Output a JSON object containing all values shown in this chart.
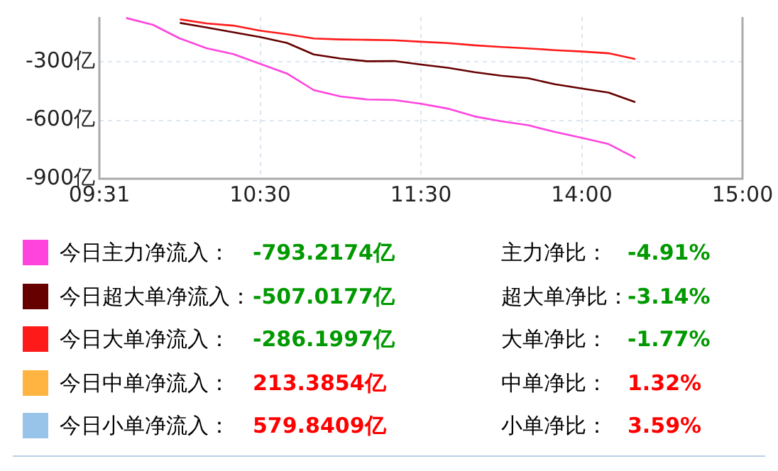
{
  "chart_data": {
    "type": "line",
    "categories": [
      "09:31",
      null,
      null,
      null,
      null,
      null,
      "10:30",
      null,
      null,
      null,
      null,
      null,
      "11:30",
      null,
      null,
      null,
      null,
      null,
      "14:00",
      null,
      null,
      null,
      null,
      null,
      "15:00"
    ],
    "ylim": [
      -900,
      -70
    ],
    "yticks": [
      {
        "value": -900,
        "label": "-900亿"
      },
      {
        "value": -600,
        "label": "-600亿"
      },
      {
        "value": -300,
        "label": "-300亿"
      }
    ],
    "grid": true,
    "legend": "bottom",
    "marker": "none",
    "line_style": "solid",
    "series": [
      {
        "name": "今日主力净流入：",
        "color": "#ff44dd",
        "values": [
          null,
          -75,
          -110,
          -180,
          -230,
          -260,
          -310,
          -360,
          -445,
          -478,
          -493,
          -496,
          -515,
          -540,
          -580,
          -605,
          -625,
          -660,
          -690,
          -722,
          -793,
          null,
          null,
          null,
          null
        ]
      },
      {
        "name": "今日超大单净流入：",
        "color": "#660000",
        "values": [
          null,
          null,
          null,
          -100,
          -124,
          -148,
          -173,
          -203,
          -262,
          -283,
          -297,
          -296,
          -314,
          -330,
          -353,
          -371,
          -384,
          -415,
          -437,
          -458,
          -507,
          null,
          null,
          null,
          null
        ]
      },
      {
        "name": "今日大单净流入：",
        "color": "#ff1a1a",
        "values": [
          null,
          null,
          null,
          -82,
          -103,
          -114,
          -140,
          -158,
          -180,
          -185,
          -187,
          -189,
          -197,
          -204,
          -215,
          -224,
          -231,
          -240,
          -247,
          -256,
          -286,
          null,
          null,
          null,
          null
        ]
      },
      {
        "name": "今日中单净流入：",
        "color": "#ffb340",
        "values": [
          null,
          null,
          null,
          null,
          null,
          null,
          null,
          null,
          null,
          null,
          null,
          null,
          null,
          null,
          null,
          null,
          null,
          null,
          null,
          null,
          null,
          null,
          null,
          null,
          null
        ]
      },
      {
        "name": "今日小单净流入：",
        "color": "#99c4ea",
        "values": [
          null,
          null,
          null,
          null,
          null,
          null,
          null,
          null,
          null,
          null,
          null,
          null,
          null,
          null,
          null,
          null,
          null,
          null,
          null,
          null,
          null,
          null,
          null,
          null,
          null
        ]
      }
    ],
    "annotations": [
      "-793.2174亿",
      "主力净比：",
      "-4.91%",
      "-507.0177亿",
      "超大单净比：",
      "-3.14%",
      "-286.1997亿",
      "大单净比：",
      "-1.77%",
      "213.3854亿",
      "中单净比：",
      "1.32%",
      "579.8409亿",
      "小单净比：",
      "3.59%"
    ]
  }
}
